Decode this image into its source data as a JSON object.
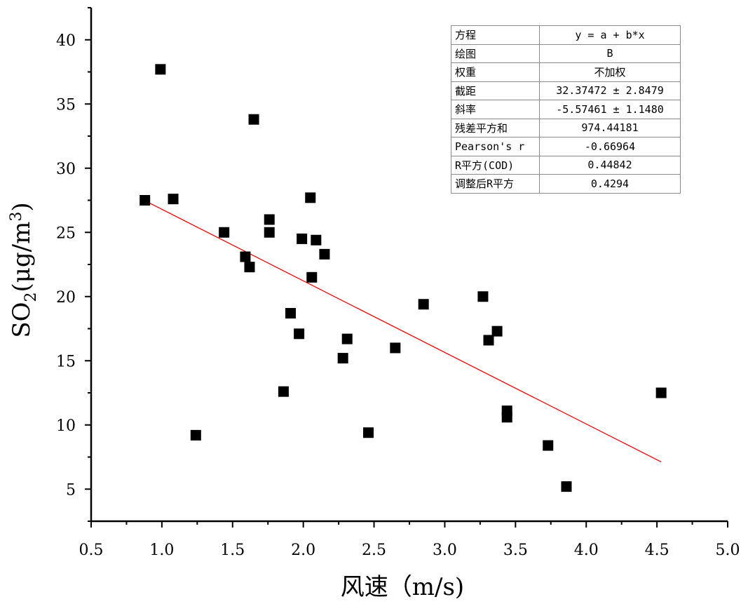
{
  "chart_data": {
    "type": "scatter",
    "title": "",
    "xlabel": "风速（m/s)",
    "ylabel": "SO2(μg/m3)",
    "ylabel_parts": {
      "base": "SO",
      "sub": "2",
      "mid": "(μg/m",
      "sup": "3",
      "end": ")"
    },
    "xlim": [
      0.5,
      5.0
    ],
    "ylim": [
      2.5,
      42.5
    ],
    "x_ticks": [
      0.5,
      1.0,
      1.5,
      2.0,
      2.5,
      3.0,
      3.5,
      4.0,
      4.5,
      5.0
    ],
    "x_tick_labels": [
      "0.5",
      "1.0",
      "1.5",
      "2.0",
      "2.5",
      "3.0",
      "3.5",
      "4.0",
      "4.5",
      "5.0"
    ],
    "y_ticks": [
      5,
      10,
      15,
      20,
      25,
      30,
      35,
      40
    ],
    "y_tick_labels": [
      "5",
      "10",
      "15",
      "20",
      "25",
      "30",
      "35",
      "40"
    ],
    "grid": false,
    "series": [
      {
        "marker": "square",
        "color": "#000000",
        "x": [
          0.88,
          0.99,
          1.08,
          1.24,
          1.44,
          1.59,
          1.62,
          1.65,
          1.76,
          1.76,
          1.86,
          1.91,
          1.97,
          1.99,
          2.05,
          2.06,
          2.09,
          2.15,
          2.28,
          2.31,
          2.46,
          2.65,
          2.85,
          3.27,
          3.31,
          3.37,
          3.44,
          3.44,
          3.73,
          3.86,
          4.53
        ],
        "y": [
          27.5,
          37.7,
          27.6,
          9.2,
          25.0,
          23.1,
          22.3,
          33.8,
          26.0,
          25.0,
          12.6,
          18.7,
          17.1,
          24.5,
          27.7,
          21.5,
          24.4,
          23.3,
          15.2,
          16.7,
          9.4,
          16.0,
          19.4,
          20.0,
          16.6,
          17.3,
          11.1,
          10.6,
          8.4,
          5.2,
          12.5
        ]
      }
    ],
    "fit_line": {
      "color": "#ff0000",
      "intercept": 32.37472,
      "slope": -5.57461,
      "x_range": [
        0.87,
        4.53
      ]
    }
  },
  "stats_table": {
    "rows": [
      {
        "key": "方程",
        "value": "y = a + b*x"
      },
      {
        "key": "绘图",
        "value": "B"
      },
      {
        "key": "权重",
        "value": "不加权"
      },
      {
        "key": "截距",
        "value": "32.37472 ± 2.8479"
      },
      {
        "key": "斜率",
        "value": "-5.57461 ± 1.1480"
      },
      {
        "key": "残差平方和",
        "value": "974.44181"
      },
      {
        "key": "Pearson's r",
        "value": "-0.66964"
      },
      {
        "key": "R平方(COD)",
        "value": "0.44842"
      },
      {
        "key": "调整后R平方",
        "value": "0.4294"
      }
    ]
  }
}
